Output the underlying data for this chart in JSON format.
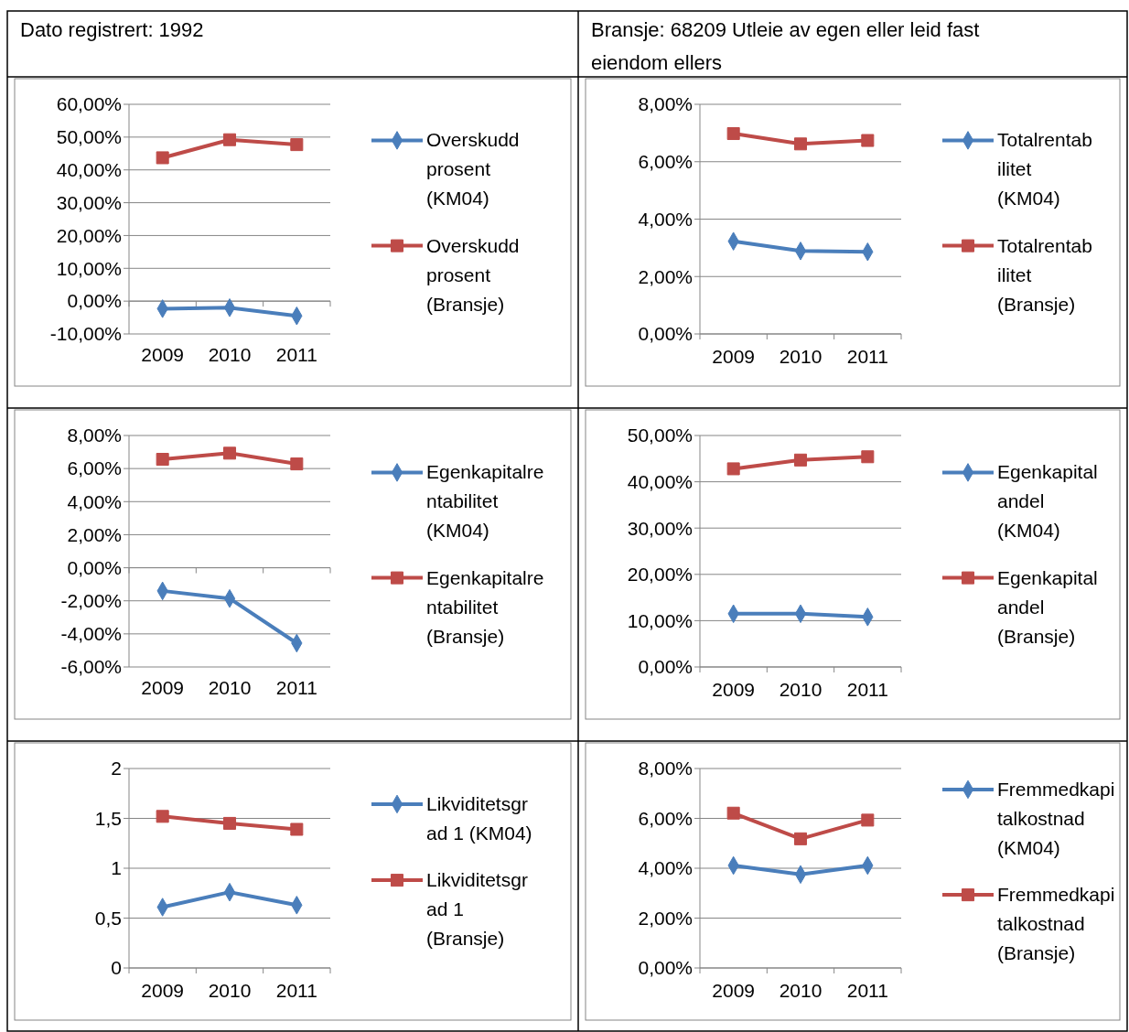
{
  "chart_data": [
    {
      "type": "other",
      "title": "Dato registrert: 1992"
    },
    {
      "type": "other",
      "title": "Bransje: 68209 Utleie av egen eller leid fast eiendom ellers"
    },
    {
      "type": "line",
      "categories": [
        "2009",
        "2010",
        "2011"
      ],
      "ylim": [
        -10,
        60
      ],
      "yticks": [
        {
          "value": -10,
          "label": "-10,00%"
        },
        {
          "value": 0,
          "label": "0,00%"
        },
        {
          "value": 10,
          "label": "10,00%"
        },
        {
          "value": 20,
          "label": "20,00%"
        },
        {
          "value": 30,
          "label": "30,00%"
        },
        {
          "value": 40,
          "label": "40,00%"
        },
        {
          "value": 50,
          "label": "50,00%"
        },
        {
          "value": 60,
          "label": "60,00%"
        }
      ],
      "grid": "y",
      "legend": "right",
      "series": [
        {
          "name": "Overskudd prosent (KM04)",
          "color": "#4a7ebb",
          "marker": "diamond",
          "values": [
            -2.3,
            -2.0,
            -4.5
          ]
        },
        {
          "name": "Overskudd prosent (Bransje)",
          "color": "#be4b48",
          "marker": "square",
          "values": [
            43.7,
            49.2,
            47.7
          ]
        }
      ]
    },
    {
      "type": "line",
      "categories": [
        "2009",
        "2010",
        "2011"
      ],
      "ylim": [
        0,
        8
      ],
      "yticks": [
        {
          "value": 0,
          "label": "0,00%"
        },
        {
          "value": 2,
          "label": "2,00%"
        },
        {
          "value": 4,
          "label": "4,00%"
        },
        {
          "value": 6,
          "label": "6,00%"
        },
        {
          "value": 8,
          "label": "8,00%"
        }
      ],
      "grid": "y",
      "legend": "right",
      "series": [
        {
          "name": "Totalrentabilitet (KM04)",
          "color": "#4a7ebb",
          "marker": "diamond",
          "values": [
            3.23,
            2.89,
            2.86
          ]
        },
        {
          "name": "Totalrentabilitet (Bransje)",
          "color": "#be4b48",
          "marker": "square",
          "values": [
            6.98,
            6.62,
            6.74
          ]
        }
      ]
    },
    {
      "type": "line",
      "categories": [
        "2009",
        "2010",
        "2011"
      ],
      "ylim": [
        -6,
        8
      ],
      "yticks": [
        {
          "value": -6,
          "label": "-6,00%"
        },
        {
          "value": -4,
          "label": "-4,00%"
        },
        {
          "value": -2,
          "label": "-2,00%"
        },
        {
          "value": 0,
          "label": "0,00%"
        },
        {
          "value": 2,
          "label": "2,00%"
        },
        {
          "value": 4,
          "label": "4,00%"
        },
        {
          "value": 6,
          "label": "6,00%"
        },
        {
          "value": 8,
          "label": "8,00%"
        }
      ],
      "grid": "y",
      "legend": "right",
      "series": [
        {
          "name": "Egenkapitalrentabilitet (KM04)",
          "color": "#4a7ebb",
          "marker": "diamond",
          "values": [
            -1.4,
            -1.86,
            -4.56
          ]
        },
        {
          "name": "Egenkapitalrentabilitet (Bransje)",
          "color": "#be4b48",
          "marker": "square",
          "values": [
            6.56,
            6.93,
            6.28
          ]
        }
      ]
    },
    {
      "type": "line",
      "categories": [
        "2009",
        "2010",
        "2011"
      ],
      "ylim": [
        0,
        50
      ],
      "yticks": [
        {
          "value": 0,
          "label": "0,00%"
        },
        {
          "value": 10,
          "label": "10,00%"
        },
        {
          "value": 20,
          "label": "20,00%"
        },
        {
          "value": 30,
          "label": "30,00%"
        },
        {
          "value": 40,
          "label": "40,00%"
        },
        {
          "value": 50,
          "label": "50,00%"
        }
      ],
      "grid": "y",
      "legend": "right",
      "series": [
        {
          "name": "Egenkapitalandel (KM04)",
          "color": "#4a7ebb",
          "marker": "diamond",
          "values": [
            11.5,
            11.5,
            10.8
          ]
        },
        {
          "name": "Egenkapitalandel (Bransje)",
          "color": "#be4b48",
          "marker": "square",
          "values": [
            42.8,
            44.7,
            45.4
          ]
        }
      ]
    },
    {
      "type": "line",
      "categories": [
        "2009",
        "2010",
        "2011"
      ],
      "ylim": [
        0,
        2
      ],
      "yticks": [
        0,
        {
          "value": 0.5,
          "label": "0,5"
        },
        1,
        {
          "value": 1.5,
          "label": "1,5"
        },
        2
      ],
      "grid": "y",
      "legend": "right",
      "series": [
        {
          "name": "Likviditetsgrad 1 (KM04)",
          "color": "#4a7ebb",
          "marker": "diamond",
          "values": [
            0.61,
            0.76,
            0.63
          ]
        },
        {
          "name": "Likviditetsgrad 1 (Bransje)",
          "color": "#be4b48",
          "marker": "square",
          "values": [
            1.52,
            1.45,
            1.39
          ]
        }
      ]
    },
    {
      "type": "line",
      "categories": [
        "2009",
        "2010",
        "2011"
      ],
      "ylim": [
        0,
        8
      ],
      "yticks": [
        {
          "value": 0,
          "label": "0,00%"
        },
        {
          "value": 2,
          "label": "2,00%"
        },
        {
          "value": 4,
          "label": "4,00%"
        },
        {
          "value": 6,
          "label": "6,00%"
        },
        {
          "value": 8,
          "label": "8,00%"
        }
      ],
      "grid": "y",
      "legend": "right",
      "series": [
        {
          "name": "Fremmedkapitalkostnad (KM04)",
          "color": "#4a7ebb",
          "marker": "diamond",
          "values": [
            4.11,
            3.75,
            4.11
          ]
        },
        {
          "name": "Fremmedkapitalkostnad (Bransje)",
          "color": "#be4b48",
          "marker": "square",
          "values": [
            6.21,
            5.18,
            5.93
          ]
        }
      ]
    }
  ]
}
